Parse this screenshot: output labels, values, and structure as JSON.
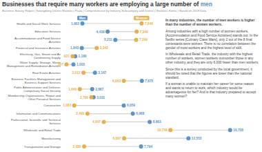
{
  "chart_data": {
    "type": "dumbbell",
    "title": "Businesses that require many workers are employing a large number of men",
    "subtitle": "Business Survey Report | Seongdong District Statistics Plaza | Comprehensive by Industry Subcategory and District | Statistics Korea | Based on 2019 Data",
    "orientation": "horizontal",
    "data_labels": true,
    "tick_labels": false,
    "xlim": [
      0,
      18000
    ],
    "categories": [
      "Health and Social Work Services",
      "Education Services",
      "Accommodation and Food Service Activities",
      "Financial and Insurance Activities",
      "Electricity, Gas, Steam and Air Conditioning Supply",
      "Water Supply; Sewage, Waste Management and Remediation Activities",
      "Real Estate Activities",
      "Business Facilities Management and Business Support Services",
      "Public Administration and Defence; Compulsory Social Security",
      "Membership Organizations, Repair and Other Personal Services",
      "Construction",
      "Information and Communications",
      "Professional, Scientific and Technical Services",
      "Wholesale and Retail Trade",
      "Manufacturing",
      "Transportation and Storage"
    ],
    "series": [
      {
        "name": "Men",
        "color": "#5b93c7",
        "values": [
          1902,
          4438,
          5211,
          1843,
          1180,
          1003,
          3167,
          7875,
          2887,
          3031,
          6059,
          6968,
          8663,
          16738,
          12553,
          7794
        ],
        "value_labels": [
          "1,902",
          "4,438",
          "5,211",
          "1,843",
          "1,180",
          "1,003",
          "3,167",
          "7,875",
          "2,887",
          "3,031",
          "6,059",
          "6,968",
          "8,663",
          "16,738",
          "12,553",
          "7,794"
        ]
      },
      {
        "name": "Women",
        "color": "#e8b04c",
        "values": [
          7849,
          7346,
          7299,
          3343,
          921,
          307,
          2012,
          6063,
          1640,
          2798,
          1083,
          2409,
          4047,
          10738,
          6097,
          2080
        ],
        "value_labels": [
          "7,849",
          "7,346",
          "7,299",
          "3,343",
          "921",
          "307",
          "2,012",
          "6,063",
          "1,640",
          "2,798",
          "1,083",
          "2,409",
          "4,047",
          "10,738",
          "6,097",
          "2,080"
        ]
      }
    ],
    "annotations": [
      "In many industries, the number of men workers is higher than the number of women workers.",
      "Among industries with a high number of women workers, [Accommodation and Food Service Activities] stands out. In the Netflix series [Culinary Class Wars], only 2 out of the 8 final contestants were women. There is no correlation between the gender of most workers and the highest level of skill.",
      "In Wholesale and Retail Trade, the industry with the highest number of workers, women workers outnumber those in any other industry, and they are only 6,000 fewer than men workers.",
      "Since this is a survey conducted by the local government, it should be noted that the figures are lower than the national standard.",
      "If a woman is unable to maintain her career for some reason and wants to return to work, which industry would be advantageous for her? And is that industry prepared to accept many women?"
    ]
  }
}
